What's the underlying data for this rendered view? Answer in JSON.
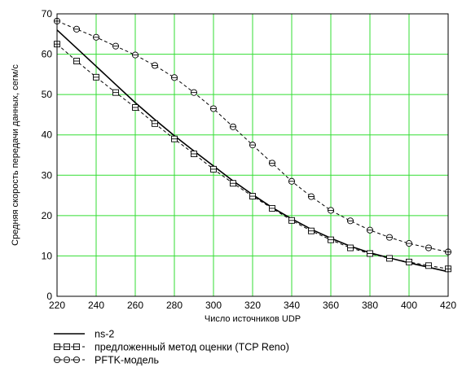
{
  "chart_data": {
    "type": "line",
    "xlabel": "Число источников UDP",
    "ylabel": "Средняя скорость передачи данных, сегм/с",
    "xlim": [
      220,
      420
    ],
    "ylim": [
      0,
      70
    ],
    "x_ticks": [
      220,
      240,
      260,
      280,
      300,
      320,
      340,
      360,
      380,
      400,
      420
    ],
    "y_ticks": [
      0,
      10,
      20,
      30,
      40,
      50,
      60,
      70
    ],
    "grid": true,
    "grid_color": "#33dd33",
    "legend_position": "bottom-left",
    "series": [
      {
        "name": "ns-2",
        "style": "solid",
        "marker": "none",
        "x": [
          220,
          230,
          240,
          250,
          260,
          270,
          280,
          290,
          300,
          310,
          320,
          330,
          340,
          350,
          360,
          370,
          380,
          390,
          400,
          410,
          420
        ],
        "y": [
          66,
          61.5,
          57,
          52.5,
          48,
          43.8,
          39.8,
          36,
          32.3,
          28.6,
          25.2,
          22,
          19.2,
          16.6,
          14.4,
          12.4,
          10.8,
          9.5,
          8.3,
          7.2,
          6.1
        ]
      },
      {
        "name": "предложенный метод оценки (TCP Reno)",
        "style": "dashed",
        "marker": "square",
        "x": [
          220,
          230,
          240,
          250,
          260,
          270,
          280,
          290,
          300,
          310,
          320,
          330,
          340,
          350,
          360,
          370,
          380,
          390,
          400,
          410,
          420
        ],
        "y": [
          62.5,
          58.3,
          54.3,
          50.5,
          46.8,
          42.8,
          39,
          35.3,
          31.5,
          28,
          24.8,
          21.8,
          18.8,
          16.2,
          14,
          12,
          10.6,
          9.4,
          8.5,
          7.6,
          6.8
        ]
      },
      {
        "name": "PFTK-модель",
        "style": "dashed",
        "marker": "circle",
        "x": [
          220,
          230,
          240,
          250,
          260,
          270,
          280,
          290,
          300,
          310,
          320,
          330,
          340,
          350,
          360,
          370,
          380,
          390,
          400,
          410,
          420
        ],
        "y": [
          68.2,
          66.2,
          64.2,
          62,
          59.8,
          57.2,
          54.2,
          50.5,
          46.5,
          42,
          37.5,
          33,
          28.5,
          24.7,
          21.3,
          18.7,
          16.4,
          14.6,
          13.1,
          12,
          11
        ]
      }
    ]
  }
}
